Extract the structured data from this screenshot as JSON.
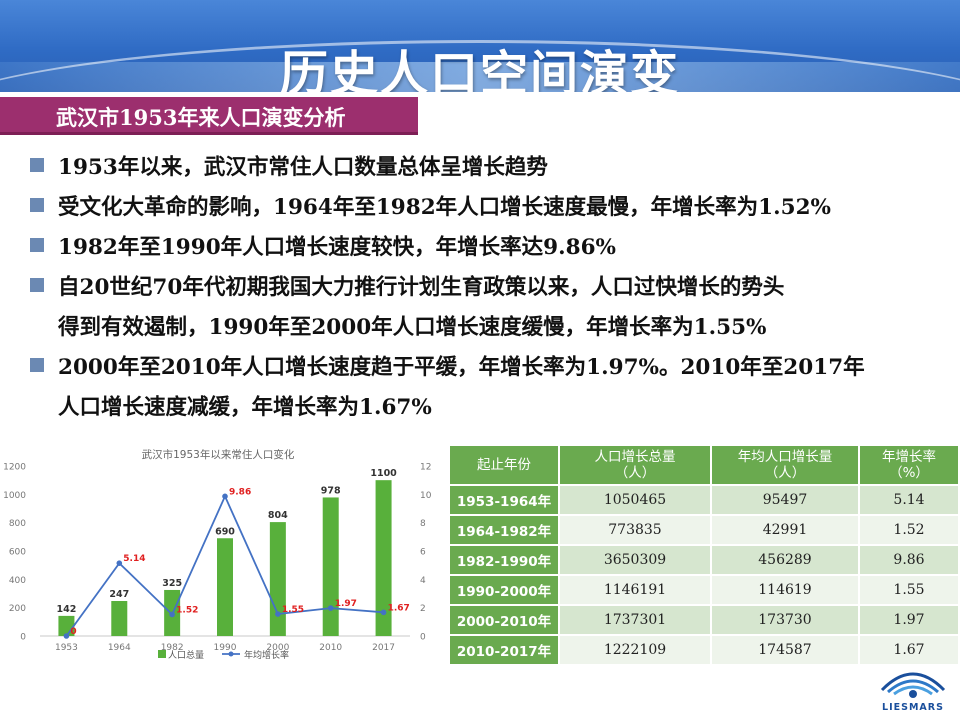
{
  "slide": {
    "title": "历史人口空间演变",
    "subtitle": "武汉市1953年来人口演变分析"
  },
  "bullets": [
    "1953年以来，武汉市常住人口数量总体呈增长趋势",
    "受文化大革命的影响，1964年至1982年人口增长速度最慢，年增长率为1.52%",
    "1982年至1990年人口增长速度较快，年增长率达9.86%",
    "自20世纪70年代初期我国大力推行计划生育政策以来，人口过快增长的势头",
    "得到有效遏制，1990年至2000年人口增长速度缓慢，年增长率为1.55%",
    "2000年至2010年人口增长速度趋于平缓，年增长率为1.97%。2010年至2017年",
    "人口增长速度减缓，年增长率为1.67%"
  ],
  "chart_data": {
    "type": "bar",
    "title": "武汉市1953年以来常住人口变化",
    "categories": [
      "1953",
      "1964",
      "1982",
      "1990",
      "2000",
      "2010",
      "2017"
    ],
    "series": [
      {
        "name": "人口总量",
        "type": "bar",
        "axis": "left",
        "values": [
          142,
          247,
          325,
          690,
          804,
          978,
          1100
        ],
        "labels": [
          "142",
          "247",
          "325",
          "690",
          "804",
          "978",
          "1100"
        ],
        "color": "#58b03b"
      },
      {
        "name": "年均增长率",
        "type": "line",
        "axis": "right",
        "values": [
          0,
          5.14,
          1.52,
          9.86,
          1.55,
          1.97,
          1.67
        ],
        "labels": [
          "0",
          "5.14",
          "1.52",
          "9.86",
          "1.55",
          "1.97",
          "1.67"
        ],
        "color": "#4472c4",
        "label_color": "#e02020"
      }
    ],
    "y_left": {
      "ticks": [
        "0",
        "200",
        "400",
        "600",
        "800",
        "1000",
        "1200"
      ],
      "range": [
        0,
        1200
      ]
    },
    "y_right": {
      "ticks": [
        "0",
        "2",
        "4",
        "6",
        "8",
        "10",
        "12"
      ],
      "range": [
        0,
        12
      ]
    },
    "grid": false,
    "legend_position": "bottom"
  },
  "table": {
    "headers": [
      [
        "起止年份"
      ],
      [
        "人口增长总量",
        "（人）"
      ],
      [
        "年均人口增长量",
        "（人）"
      ],
      [
        "年增长率",
        "（%）"
      ]
    ],
    "rows": [
      [
        "1953-1964年",
        "1050465",
        "95497",
        "5.14"
      ],
      [
        "1964-1982年",
        "773835",
        "42991",
        "1.52"
      ],
      [
        "1982-1990年",
        "3650309",
        "456289",
        "9.86"
      ],
      [
        "1990-2000年",
        "1146191",
        "114619",
        "1.55"
      ],
      [
        "2000-2010年",
        "1737301",
        "173730",
        "1.97"
      ],
      [
        "2010-2017年",
        "1222109",
        "174587",
        "1.67"
      ]
    ]
  },
  "logo": {
    "text": "LIESMARS",
    "icon": "liesmars-logo-icon"
  }
}
